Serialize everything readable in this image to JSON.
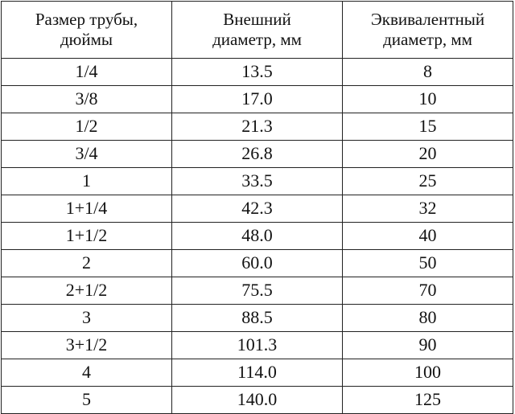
{
  "table": {
    "headers": [
      [
        "Размер трубы,",
        "дюймы"
      ],
      [
        "Внешний",
        "диаметр, мм"
      ],
      [
        "Эквивалентный",
        "диаметр, мм"
      ]
    ],
    "rows": [
      [
        "1/4",
        "13.5",
        "8"
      ],
      [
        "3/8",
        "17.0",
        "10"
      ],
      [
        "1/2",
        "21.3",
        "15"
      ],
      [
        "3/4",
        "26.8",
        "20"
      ],
      [
        "1",
        "33.5",
        "25"
      ],
      [
        "1+1/4",
        "42.3",
        "32"
      ],
      [
        "1+1/2",
        "48.0",
        "40"
      ],
      [
        "2",
        "60.0",
        "50"
      ],
      [
        "2+1/2",
        "75.5",
        "70"
      ],
      [
        "3",
        "88.5",
        "80"
      ],
      [
        "3+1/2",
        "101.3",
        "90"
      ],
      [
        "4",
        "114.0",
        "100"
      ],
      [
        "5",
        "140.0",
        "125"
      ]
    ]
  }
}
